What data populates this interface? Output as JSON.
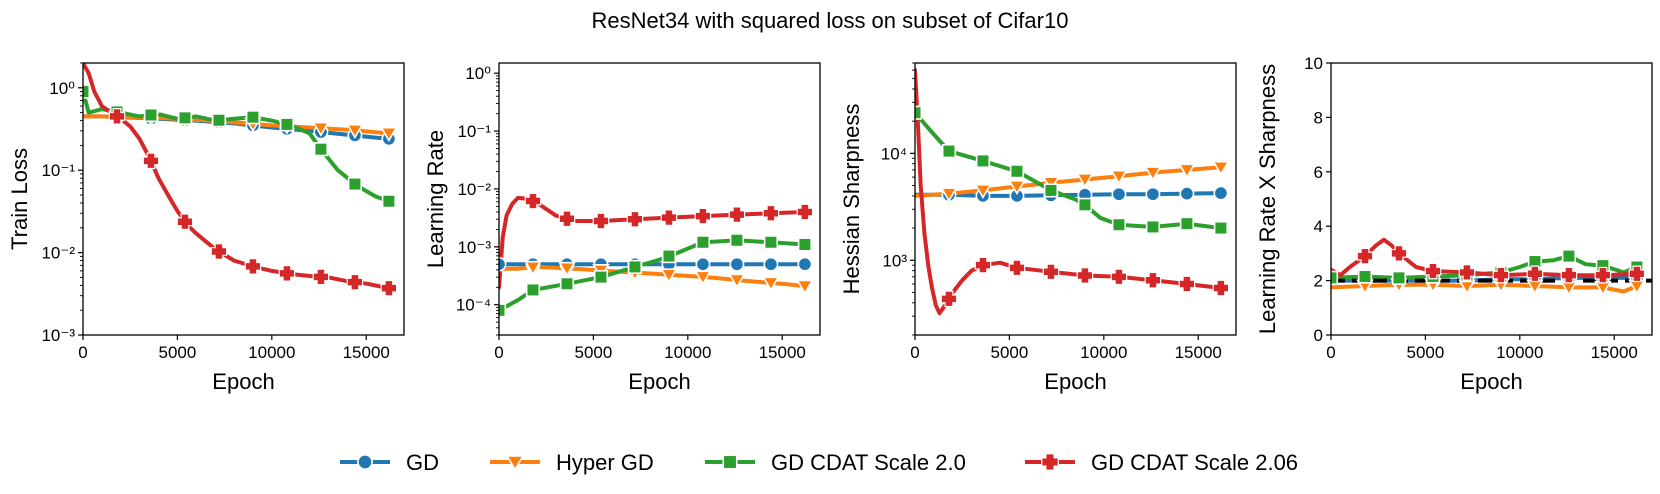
{
  "figure": {
    "title": "ResNet34 with squared loss on subset of Cifar10"
  },
  "legend": {
    "placement": "bottom-center",
    "entries": [
      {
        "label": "GD",
        "color": "#1f77b4",
        "marker": "circle"
      },
      {
        "label": "Hyper GD",
        "color": "#ff7f0e",
        "marker": "triangle-down"
      },
      {
        "label": "GD CDAT Scale 2.0",
        "color": "#2ca02c",
        "marker": "square"
      },
      {
        "label": "GD CDAT Scale 2.06",
        "color": "#d62728",
        "marker": "plus"
      }
    ]
  },
  "chart_data": [
    {
      "type": "line",
      "xlabel": "Epoch",
      "ylabel": "Train Loss",
      "yscale": "log",
      "xlim": [
        0,
        17000
      ],
      "ylim": [
        0.001,
        2.0
      ],
      "xticks": [
        0,
        5000,
        10000,
        15000
      ],
      "xtick_labels": [
        "0",
        "5000",
        "10000",
        "15000"
      ],
      "yticks": [
        0.001,
        0.01,
        0.1,
        1
      ],
      "ytick_labels": [
        "10⁻³",
        "10⁻²",
        "10⁻¹",
        "10⁰"
      ],
      "grid": false,
      "series": [
        {
          "name": "GD",
          "x": [
            0,
            1000,
            2000,
            4000,
            6000,
            8000,
            10000,
            12000,
            14000,
            16200
          ],
          "y": [
            0.45,
            0.45,
            0.44,
            0.42,
            0.4,
            0.37,
            0.33,
            0.3,
            0.27,
            0.24
          ],
          "markers_x": [
            1800,
            3600,
            5400,
            7200,
            9000,
            10800,
            12600,
            14400,
            16200
          ]
        },
        {
          "name": "Hyper GD",
          "x": [
            0,
            1000,
            2000,
            4000,
            6000,
            8000,
            10000,
            12000,
            14000,
            16200
          ],
          "y": [
            0.45,
            0.45,
            0.44,
            0.43,
            0.41,
            0.38,
            0.35,
            0.33,
            0.31,
            0.28
          ],
          "markers_x": [
            1800,
            3600,
            5400,
            7200,
            9000,
            10800,
            12600,
            14400,
            16200
          ]
        },
        {
          "name": "GD CDAT Scale 2.0",
          "x": [
            0,
            300,
            1000,
            2000,
            3000,
            4000,
            5000,
            6000,
            7000,
            8000,
            9000,
            10000,
            11000,
            12000,
            12600,
            13500,
            14500,
            15500,
            16200
          ],
          "y": [
            0.9,
            0.5,
            0.55,
            0.5,
            0.45,
            0.48,
            0.42,
            0.45,
            0.4,
            0.42,
            0.44,
            0.4,
            0.35,
            0.28,
            0.18,
            0.1,
            0.065,
            0.048,
            0.042
          ],
          "markers_x": [
            0,
            1800,
            3600,
            5400,
            7200,
            9000,
            10800,
            12600,
            14400,
            16200
          ]
        },
        {
          "name": "GD CDAT Scale 2.06",
          "x": [
            0,
            300,
            600,
            1000,
            1500,
            2000,
            2500,
            3000,
            3600,
            4000,
            4500,
            5000,
            5500,
            6000,
            7000,
            8000,
            9000,
            10000,
            11000,
            12000,
            13000,
            14000,
            15000,
            16200
          ],
          "y": [
            2.0,
            1.5,
            0.9,
            0.6,
            0.5,
            0.42,
            0.34,
            0.24,
            0.13,
            0.08,
            0.05,
            0.032,
            0.022,
            0.017,
            0.011,
            0.008,
            0.0068,
            0.006,
            0.0055,
            0.0052,
            0.005,
            0.0045,
            0.0042,
            0.0037
          ],
          "markers_x": [
            1800,
            3600,
            5400,
            7200,
            9000,
            10800,
            12600,
            14400,
            16200
          ]
        }
      ]
    },
    {
      "type": "line",
      "xlabel": "Epoch",
      "ylabel": "Learning Rate",
      "yscale": "log",
      "xlim": [
        0,
        17000
      ],
      "ylim": [
        3e-05,
        1.5
      ],
      "xticks": [
        0,
        5000,
        10000,
        15000
      ],
      "xtick_labels": [
        "0",
        "5000",
        "10000",
        "15000"
      ],
      "yticks": [
        0.0001,
        0.001,
        0.01,
        0.1,
        1
      ],
      "ytick_labels": [
        "10⁻⁴",
        "10⁻³",
        "10⁻²",
        "10⁻¹",
        "10⁰"
      ],
      "grid": false,
      "series": [
        {
          "name": "GD",
          "x": [
            0,
            16200
          ],
          "y": [
            0.0005,
            0.0005
          ],
          "markers_x": [
            0,
            1800,
            3600,
            5400,
            7200,
            9000,
            10800,
            12600,
            14400,
            16200
          ]
        },
        {
          "name": "Hyper GD",
          "x": [
            0,
            1000,
            2000,
            4000,
            6000,
            7200,
            9000,
            11000,
            13000,
            15000,
            16200
          ],
          "y": [
            0.00042,
            0.00042,
            0.00045,
            0.00042,
            0.00038,
            0.00036,
            0.00033,
            0.0003,
            0.00026,
            0.00023,
            0.00021
          ],
          "markers_x": [
            1800,
            3600,
            5400,
            7200,
            9000,
            10800,
            12600,
            14400,
            16200
          ]
        },
        {
          "name": "GD CDAT Scale 2.0",
          "x": [
            0,
            1000,
            1800,
            3600,
            5400,
            7200,
            8500,
            9500,
            10800,
            11800,
            12600,
            14400,
            16200
          ],
          "y": [
            8e-05,
            0.00012,
            0.00018,
            0.00023,
            0.0003,
            0.00045,
            0.0006,
            0.0008,
            0.0012,
            0.00125,
            0.0013,
            0.0012,
            0.0011
          ],
          "markers_x": [
            0,
            1800,
            3600,
            5400,
            7200,
            9000,
            10800,
            12600,
            14400,
            16200
          ]
        },
        {
          "name": "GD CDAT Scale 2.06",
          "x": [
            0,
            200,
            400,
            700,
            1000,
            1500,
            2000,
            3000,
            4000,
            5400,
            7200,
            9000,
            10800,
            12600,
            14400,
            16200
          ],
          "y": [
            0.0002,
            0.0015,
            0.0035,
            0.0055,
            0.007,
            0.0068,
            0.0058,
            0.0035,
            0.0028,
            0.0028,
            0.003,
            0.0032,
            0.0034,
            0.0036,
            0.0038,
            0.004
          ],
          "markers_x": [
            1800,
            3600,
            5400,
            7200,
            9000,
            10800,
            12600,
            14400,
            16200
          ]
        }
      ]
    },
    {
      "type": "line",
      "xlabel": "Epoch",
      "ylabel": "Hessian Sharpness",
      "yscale": "log",
      "xlim": [
        0,
        17000
      ],
      "ylim": [
        200,
        70000
      ],
      "xticks": [
        0,
        5000,
        10000,
        15000
      ],
      "xtick_labels": [
        "0",
        "5000",
        "10000",
        "15000"
      ],
      "yticks": [
        1000,
        10000
      ],
      "ytick_labels": [
        "10³",
        "10⁴"
      ],
      "grid": false,
      "series": [
        {
          "name": "GD",
          "x": [
            0,
            1800,
            3600,
            5400,
            7200,
            9000,
            10800,
            12600,
            14400,
            16200
          ],
          "y": [
            4100,
            4100,
            4000,
            4000,
            4050,
            4100,
            4150,
            4150,
            4200,
            4250
          ],
          "markers_x": [
            1800,
            3600,
            5400,
            7200,
            9000,
            10800,
            12600,
            14400,
            16200
          ]
        },
        {
          "name": "Hyper GD",
          "x": [
            0,
            1800,
            3600,
            5400,
            7200,
            9000,
            10800,
            12600,
            14400,
            16200
          ],
          "y": [
            4000,
            4200,
            4500,
            4900,
            5300,
            5700,
            6100,
            6600,
            7000,
            7400
          ],
          "markers_x": [
            1800,
            3600,
            5400,
            7200,
            9000,
            10800,
            12600,
            14400,
            16200
          ]
        },
        {
          "name": "GD CDAT Scale 2.0",
          "x": [
            0,
            500,
            1000,
            1800,
            3600,
            5400,
            7200,
            8500,
            9000,
            9800,
            10800,
            12600,
            14400,
            16200
          ],
          "y": [
            24000,
            19000,
            15000,
            10500,
            8500,
            6800,
            4500,
            3700,
            3300,
            2500,
            2150,
            2050,
            2200,
            2000
          ],
          "markers_x": [
            0,
            1800,
            3600,
            5400,
            7200,
            9000,
            10800,
            12600,
            14400,
            16200
          ]
        },
        {
          "name": "GD CDAT Scale 2.06",
          "x": [
            0,
            150,
            300,
            500,
            700,
            900,
            1100,
            1300,
            1600,
            2000,
            2500,
            3000,
            3600,
            4500,
            5400,
            7200,
            9000,
            10800,
            12600,
            14400,
            16200
          ],
          "y": [
            60000,
            20000,
            5000,
            1800,
            900,
            550,
            380,
            320,
            380,
            500,
            650,
            800,
            900,
            950,
            850,
            780,
            720,
            700,
            650,
            600,
            550
          ],
          "markers_x": [
            1800,
            3600,
            5400,
            7200,
            9000,
            10800,
            12600,
            14400,
            16200
          ]
        }
      ]
    },
    {
      "type": "line",
      "xlabel": "Epoch",
      "ylabel": "Learning Rate X Sharpness",
      "yscale": "linear",
      "xlim": [
        0,
        17000
      ],
      "ylim": [
        0,
        10
      ],
      "xticks": [
        0,
        5000,
        10000,
        15000
      ],
      "xtick_labels": [
        "0",
        "5000",
        "10000",
        "15000"
      ],
      "yticks": [
        0,
        2,
        4,
        6,
        8,
        10
      ],
      "ytick_labels": [
        "0",
        "2",
        "4",
        "6",
        "8",
        "10"
      ],
      "grid": false,
      "reference_line": {
        "y": 2.0,
        "style": "dashed",
        "color": "#000000"
      },
      "series": [
        {
          "name": "GD",
          "x": [
            0,
            1800,
            3600,
            5400,
            7200,
            9000,
            10800,
            12600,
            14400,
            16200
          ],
          "y": [
            2.0,
            2.0,
            2.0,
            2.0,
            2.0,
            2.05,
            2.05,
            2.1,
            2.1,
            2.1
          ],
          "markers_x": [
            1800,
            3600,
            5400,
            7200,
            9000,
            10800,
            12600,
            14400,
            16200
          ]
        },
        {
          "name": "Hyper GD",
          "x": [
            0,
            1800,
            3600,
            5400,
            7200,
            9000,
            10800,
            12600,
            14400,
            15500,
            16200
          ],
          "y": [
            1.75,
            1.8,
            1.85,
            1.85,
            1.8,
            1.85,
            1.8,
            1.75,
            1.75,
            1.6,
            1.8
          ],
          "markers_x": [
            1800,
            3600,
            5400,
            7200,
            9000,
            10800,
            12600,
            14400,
            16200
          ]
        },
        {
          "name": "GD CDAT Scale 2.0",
          "x": [
            0,
            1800,
            3600,
            5400,
            7200,
            9000,
            10000,
            10800,
            11800,
            12600,
            13500,
            14400,
            15500,
            16200
          ],
          "y": [
            2.1,
            2.15,
            2.1,
            2.15,
            2.2,
            2.3,
            2.5,
            2.7,
            2.75,
            2.9,
            2.6,
            2.55,
            2.3,
            2.5
          ],
          "markers_x": [
            0,
            1800,
            3600,
            5400,
            7200,
            9000,
            10800,
            12600,
            14400,
            16200
          ]
        },
        {
          "name": "GD CDAT Scale 2.06",
          "x": [
            0,
            500,
            1000,
            1800,
            2400,
            2800,
            3200,
            3600,
            4500,
            5400,
            7200,
            9000,
            10800,
            12600,
            14400,
            16200
          ],
          "y": [
            2.4,
            2.2,
            2.5,
            2.9,
            3.3,
            3.5,
            3.3,
            3.0,
            2.5,
            2.35,
            2.3,
            2.2,
            2.25,
            2.2,
            2.2,
            2.25
          ],
          "markers_x": [
            1800,
            3600,
            5400,
            7200,
            9000,
            10800,
            12600,
            14400,
            16200
          ]
        }
      ]
    }
  ]
}
